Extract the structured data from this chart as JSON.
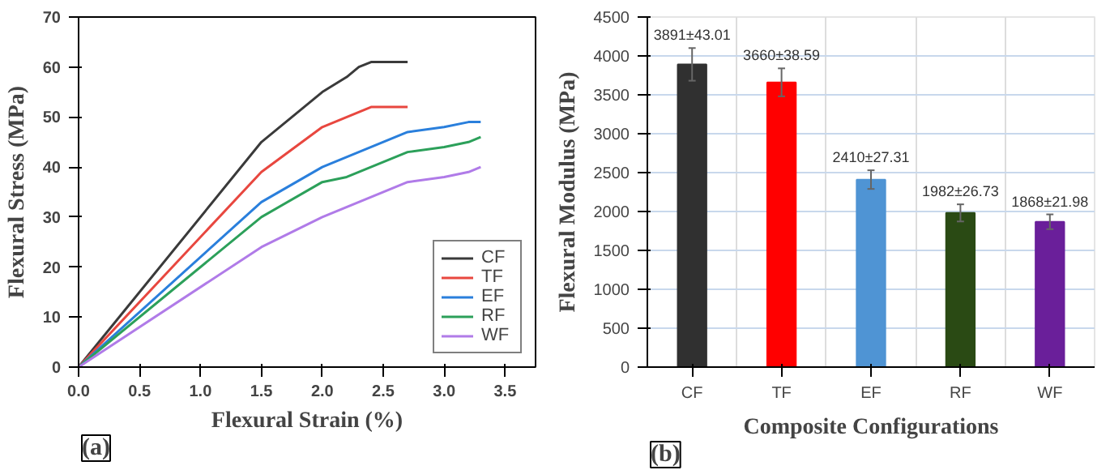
{
  "chart_data": [
    {
      "type": "line",
      "xlabel": "Flexural Strain (%)",
      "ylabel": "Flexural Stress (MPa)",
      "annotations": [
        "(a)"
      ],
      "xlim": [
        0,
        3.75
      ],
      "ylim": [
        0,
        70
      ],
      "xticks": [
        {
          "value": 0,
          "label": "0.0"
        },
        0.5,
        {
          "value": 1,
          "label": "1.0"
        },
        1.5,
        {
          "value": 2,
          "label": "2.0"
        },
        2.5,
        {
          "value": 3,
          "label": "3.0"
        },
        3.5
      ],
      "yticks": [
        0,
        10,
        20,
        30,
        40,
        50,
        60,
        70
      ],
      "grid": false,
      "legend": "bottom right",
      "line_style": "solid",
      "series": [
        {
          "name": "CF",
          "color": "#3a3a3a",
          "x": [
            0,
            1.5,
            2.0,
            2.2,
            2.3,
            2.4,
            2.7
          ],
          "values": [
            0,
            45,
            55,
            58,
            60,
            61,
            61
          ]
        },
        {
          "name": "TF",
          "color": "#e8473f",
          "x": [
            0,
            1.5,
            2.0,
            2.4,
            2.7
          ],
          "values": [
            0,
            39,
            48,
            52,
            52
          ]
        },
        {
          "name": "EF",
          "color": "#2a7fdc",
          "x": [
            0,
            1.5,
            2.0,
            2.7,
            3.0,
            3.2,
            3.3
          ],
          "values": [
            0,
            33,
            40,
            47,
            48,
            49,
            49
          ]
        },
        {
          "name": "RF",
          "color": "#2ca05a",
          "x": [
            0,
            1.5,
            2.0,
            2.2,
            2.7,
            3.0,
            3.2,
            3.3
          ],
          "values": [
            0,
            30,
            37,
            38,
            43,
            44,
            45,
            46
          ]
        },
        {
          "name": "WF",
          "color": "#b07be8",
          "x": [
            0,
            1.5,
            2.0,
            2.7,
            3.0,
            3.2,
            3.3
          ],
          "values": [
            0,
            24,
            30,
            37,
            38,
            39,
            40
          ]
        }
      ]
    },
    {
      "type": "bar",
      "xlabel": "Composite Configurations",
      "ylabel": "Flexural Modulus (MPa)",
      "annotations": [
        "(b)"
      ],
      "categories": [
        "CF",
        "TF",
        "EF",
        "RF",
        "WF"
      ],
      "values": [
        3891,
        3660,
        2410,
        1982,
        1868
      ],
      "colors": [
        "#303030",
        "#ff0000",
        "#4f94d4",
        "#2a4a14",
        "#6a1f9a"
      ],
      "errors": [
        210,
        180,
        120,
        110,
        95
      ],
      "value_labels": [
        "3891±43.01",
        "3660±38.59",
        "2410±27.31",
        "1982±26.73",
        "1868±21.98"
      ],
      "ylim": [
        0,
        4500
      ],
      "yticks": [
        0,
        500,
        1000,
        1500,
        2000,
        2500,
        3000,
        3500,
        4000,
        4500
      ],
      "grid": true
    }
  ]
}
